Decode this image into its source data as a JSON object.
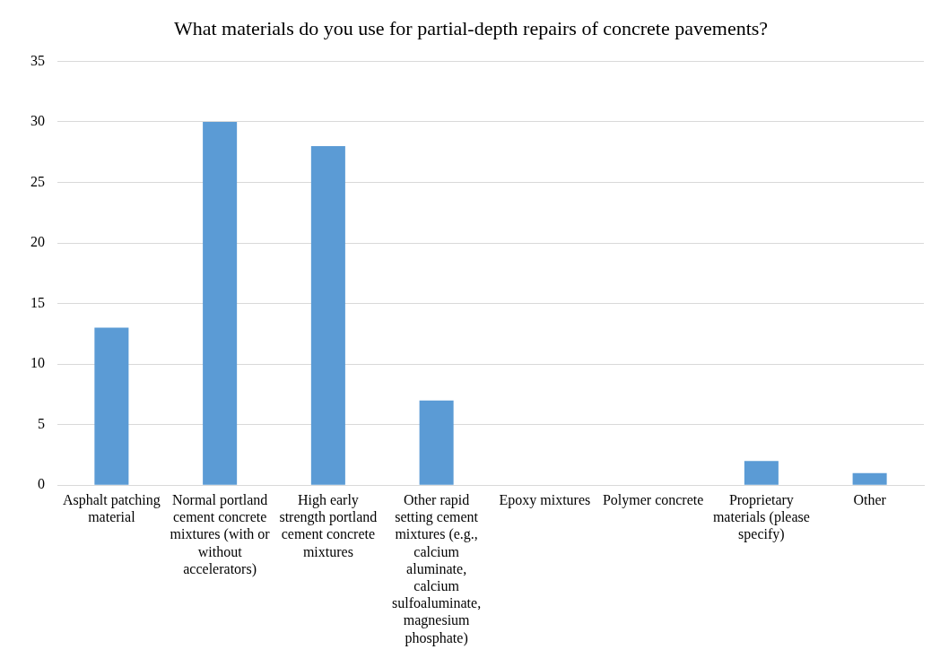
{
  "chart_data": {
    "type": "bar",
    "title": "What materials do you use for partial-depth repairs of concrete pavements?",
    "categories": [
      "Asphalt patching material",
      "Normal portland cement concrete mixtures (with or without accelerators)",
      "High early strength portland cement concrete mixtures",
      "Other rapid setting cement mixtures (e.g., calcium aluminate, calcium sulfoaluminate, magnesium phosphate)",
      "Epoxy mixtures",
      "Polymer concrete",
      "Proprietary materials (please specify)",
      "Other"
    ],
    "values": [
      13,
      30,
      28,
      7,
      0,
      0,
      2,
      1
    ],
    "color": "#5b9bd5",
    "ylim": [
      0,
      35
    ],
    "yticks": [
      0,
      5,
      10,
      15,
      20,
      25,
      30,
      35
    ],
    "grid": "y",
    "legend": false
  }
}
